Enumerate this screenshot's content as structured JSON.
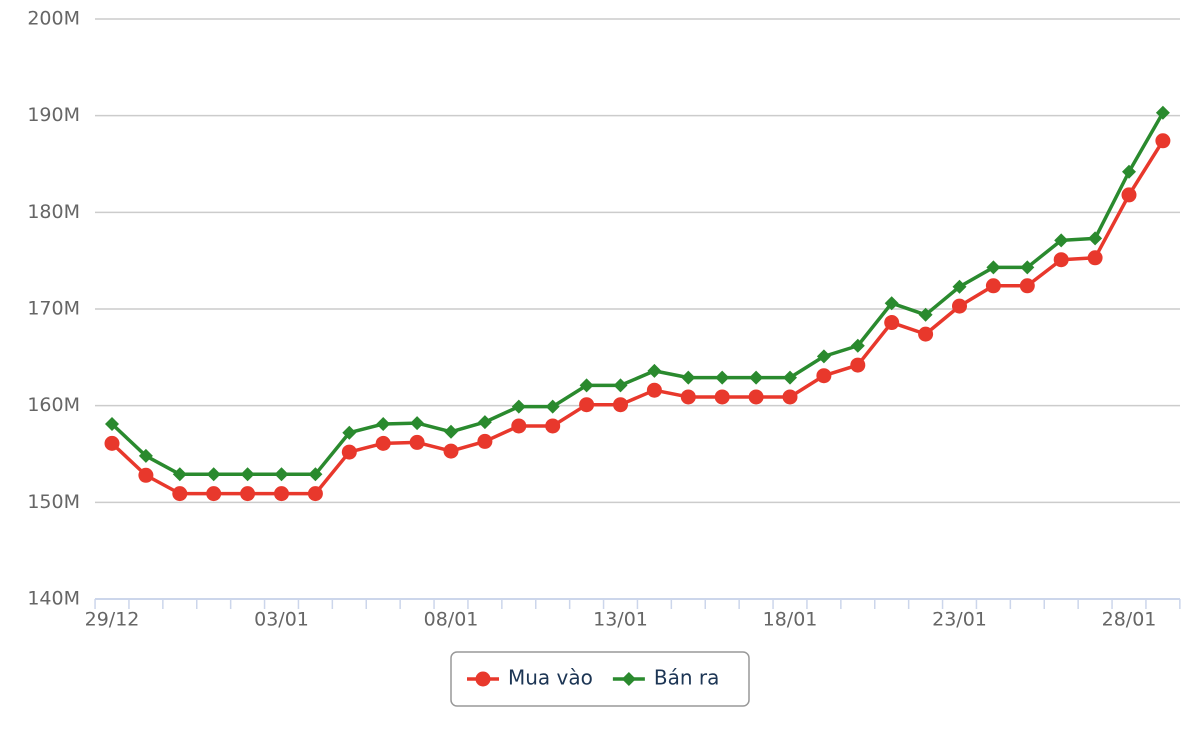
{
  "chart_data": {
    "type": "line",
    "categories": [
      "29/12",
      null,
      null,
      null,
      null,
      "03/01",
      null,
      null,
      null,
      null,
      "08/01",
      null,
      null,
      null,
      null,
      "13/01",
      null,
      null,
      null,
      null,
      "18/01",
      null,
      null,
      null,
      null,
      "23/01",
      null,
      null,
      null,
      null,
      "28/01",
      null
    ],
    "series": [
      {
        "name": "Mua vào",
        "color": "#e8382c",
        "marker": "circle",
        "values": [
          156100000,
          152800000,
          150900000,
          150900000,
          150900000,
          150900000,
          150900000,
          155200000,
          156100000,
          156200000,
          155300000,
          156300000,
          157900000,
          157900000,
          160100000,
          160100000,
          161600000,
          160900000,
          160900000,
          160900000,
          160900000,
          163100000,
          164200000,
          168600000,
          167400000,
          170300000,
          172400000,
          172400000,
          175100000,
          175300000,
          181800000,
          187400000
        ]
      },
      {
        "name": "Bán ra",
        "color": "#2a8a2e",
        "marker": "diamond",
        "values": [
          158100000,
          154800000,
          152900000,
          152900000,
          152900000,
          152900000,
          152900000,
          157200000,
          158100000,
          158200000,
          157300000,
          158300000,
          159900000,
          159900000,
          162100000,
          162100000,
          163600000,
          162900000,
          162900000,
          162900000,
          162900000,
          165100000,
          166200000,
          170600000,
          169400000,
          172300000,
          174300000,
          174300000,
          177100000,
          177300000,
          184200000,
          190300000
        ]
      }
    ],
    "ylim": [
      140000000,
      200000000
    ],
    "yticks": [
      {
        "value": 140000000,
        "label": "140M"
      },
      {
        "value": 150000000,
        "label": "150M"
      },
      {
        "value": 160000000,
        "label": "160M"
      },
      {
        "value": 170000000,
        "label": "170M"
      },
      {
        "value": 180000000,
        "label": "180M"
      },
      {
        "value": 190000000,
        "label": "190M"
      },
      {
        "value": 200000000,
        "label": "200M"
      }
    ],
    "grid": true,
    "legend": "bottom"
  }
}
